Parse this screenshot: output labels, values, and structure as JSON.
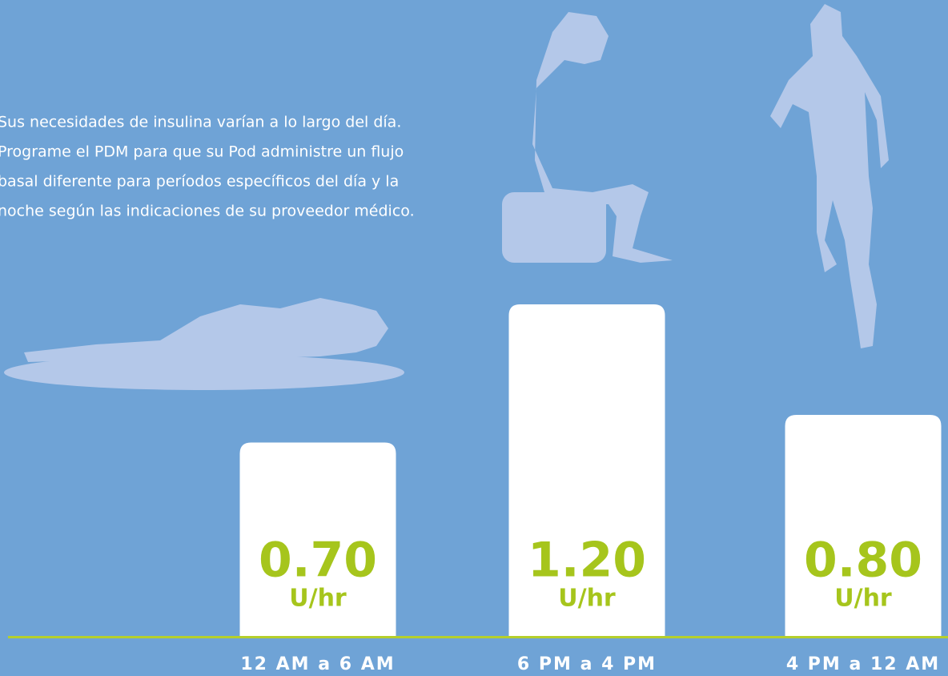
{
  "chart_data": {
    "type": "bar",
    "description": [
      "Sus necesidades de insulina varían a lo largo del día.",
      "Programe el PDM para que su Pod administre un flujo",
      "basal diferente para períodos específicos del día y la",
      "noche según las indicaciones de su proveedor médico."
    ],
    "categories": [
      "12 AM a 6 AM",
      "6 PM a 4 PM",
      "4 PM a 12 AM"
    ],
    "values": [
      0.7,
      1.2,
      0.8
    ],
    "value_labels": [
      "0.70",
      "1.20",
      "0.80"
    ],
    "unit": "U/hr",
    "color": "#ffffff"
  }
}
